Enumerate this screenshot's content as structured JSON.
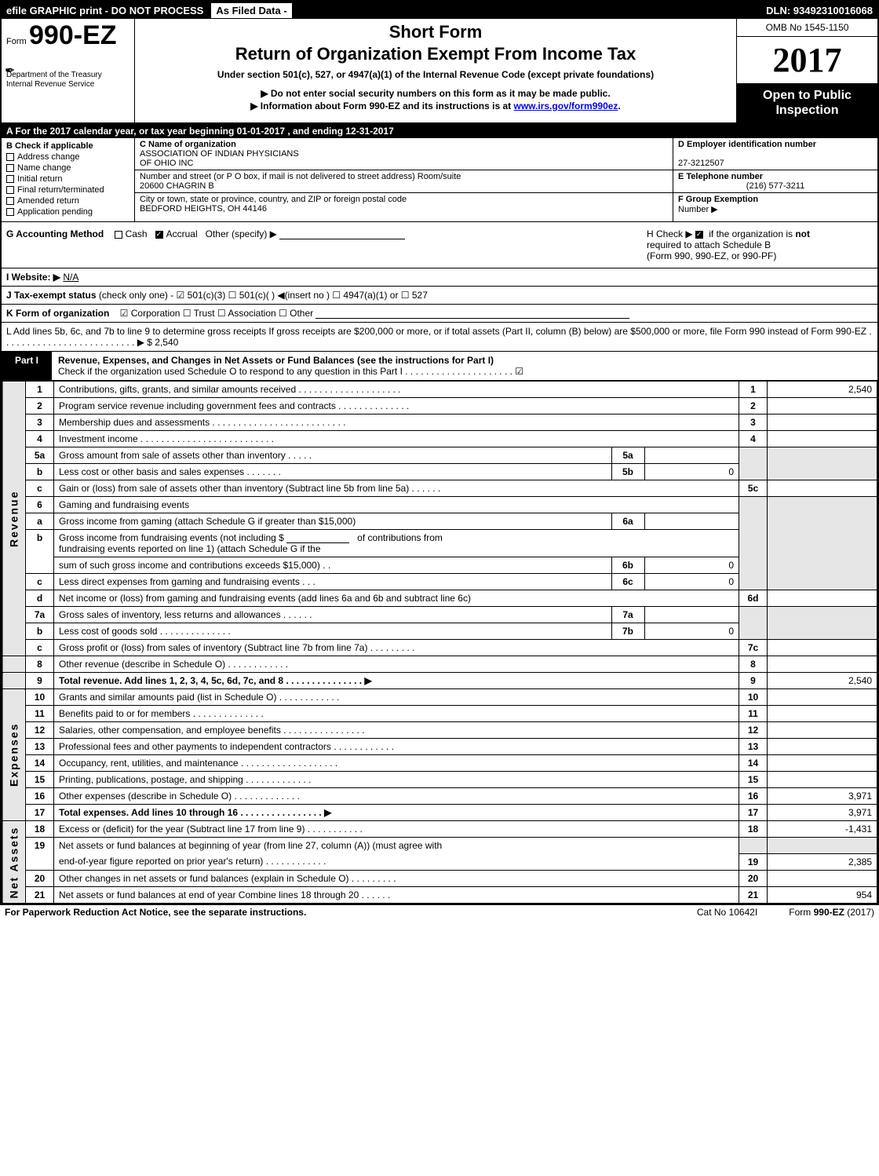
{
  "topbar": {
    "left": "efile GRAPHIC print - DO NOT PROCESS",
    "asfiled": "As Filed Data -",
    "dln": "DLN: 93492310016068"
  },
  "header": {
    "form_prefix": "Form",
    "form_number": "990-EZ",
    "dept1": "Department of the Treasury",
    "dept2": "Internal Revenue Service",
    "short": "Short Form",
    "title": "Return of Organization Exempt From Income Tax",
    "subtitle": "Under section 501(c), 527, or 4947(a)(1) of the Internal Revenue Code (except private foundations)",
    "note1": "▶ Do not enter social security numbers on this form as it may be made public.",
    "note2_pre": "▶ Information about Form 990-EZ and its instructions is at ",
    "note2_link": "www.irs.gov/form990ez",
    "note2_post": ".",
    "omb": "OMB No 1545-1150",
    "year": "2017",
    "open1": "Open to Public",
    "open2": "Inspection"
  },
  "band_a": "A  For the 2017 calendar year, or tax year beginning 01-01-2017            , and ending 12-31-2017",
  "sec_b": {
    "hdr": "B  Check if applicable",
    "items": [
      "Address change",
      "Name change",
      "Initial return",
      "Final return/terminated",
      "Amended return",
      "Application pending"
    ]
  },
  "sec_c": {
    "c_lbl": "C Name of organization",
    "c_name1": "ASSOCIATION OF INDIAN PHYSICIANS",
    "c_name2": "OF OHIO INC",
    "addr_lbl": "Number and street (or P  O  box, if mail is not delivered to street address)  Room/suite",
    "addr": "20600 CHAGRIN B",
    "city_lbl": "City or town, state or province, country, and ZIP or foreign postal code",
    "city": "BEDFORD HEIGHTS, OH  44146"
  },
  "sec_def": {
    "d_lbl": "D Employer identification number",
    "d_val": "27-3212507",
    "e_lbl": "E Telephone number",
    "e_val": "(216) 577-3211",
    "f_lbl": "F Group Exemption",
    "f_lbl2": "Number    ▶"
  },
  "sec_g": {
    "lbl": "G Accounting Method",
    "cash": "Cash",
    "accrual": "Accrual",
    "other": "Other (specify) ▶"
  },
  "sec_h": {
    "line1_pre": "H   Check ▶   ",
    "line1_post": " if the organization is ",
    "not": "not",
    "line2": "required to attach Schedule B",
    "line3": "(Form 990, 990-EZ, or 990-PF)"
  },
  "sec_i": {
    "lbl": "I Website: ▶",
    "val": "N/A"
  },
  "sec_j": {
    "lbl": "J Tax-exempt status",
    "rest": "(check only one) - ☑ 501(c)(3)  ☐ 501(c)(  ) ◀(insert no ) ☐ 4947(a)(1) or  ☐ 527"
  },
  "sec_k": {
    "lbl": "K Form of organization",
    "opts": "☑ Corporation   ☐ Trust   ☐ Association   ☐ Other"
  },
  "sec_l": {
    "text": "L Add lines 5b, 6c, and 7b to line 9 to determine gross receipts  If gross receipts are $200,000 or more, or if total assets (Part II, column (B) below) are $500,000 or more, file Form 990 instead of Form 990-EZ  .  .  .  .  .  .  .  .  .  .  .  .  .  .  .  .  .  .  .  .  .  .  .  .  .  .  ▶ $ 2,540"
  },
  "part1": {
    "lbl": "Part I",
    "title": "Revenue, Expenses, and Changes in Net Assets or Fund Balances (see the instructions for Part I)",
    "check": "Check if the organization used Schedule O to respond to any question in this Part I .  .  .  .  .  .  .  .  .  .  .  .  .  .  .  .  .  .  .  .  .  ☑"
  },
  "side": {
    "rev": "Revenue",
    "exp": "Expenses",
    "net": "Net Assets"
  },
  "lines": {
    "l1": {
      "n": "1",
      "t": "Contributions, gifts, grants, and similar amounts received .  .  .  .  .  .  .  .  .  .  .  .  .  .  .  .  .  .  .  .",
      "box": "1",
      "v": "2,540"
    },
    "l2": {
      "n": "2",
      "t": "Program service revenue including government fees and contracts .  .  .  .  .  .  .  .  .  .  .  .  .  .",
      "box": "2",
      "v": ""
    },
    "l3": {
      "n": "3",
      "t": "Membership dues and assessments .  .  .  .  .  .  .  .  .  .  .  .  .  .  .  .  .  .  .  .  .  .  .  .  .  .",
      "box": "3",
      "v": ""
    },
    "l4": {
      "n": "4",
      "t": "Investment income .  .  .  .  .  .  .  .  .  .  .  .  .  .  .  .  .  .  .  .  .  .  .  .  .  .",
      "box": "4",
      "v": ""
    },
    "l5a": {
      "n": "5a",
      "t": "Gross amount from sale of assets other than inventory .  .  .  .  .",
      "ibox": "5a",
      "iv": ""
    },
    "l5b": {
      "n": "b",
      "t": "Less  cost or other basis and sales expenses .  .  .  .  .  .  .",
      "ibox": "5b",
      "iv": "0"
    },
    "l5c": {
      "n": "c",
      "t": "Gain or (loss) from sale of assets other than inventory (Subtract line 5b from line 5a) .  .  .  .  .  .",
      "box": "5c",
      "v": ""
    },
    "l6": {
      "n": "6",
      "t": "Gaming and fundraising events"
    },
    "l6a": {
      "n": "a",
      "t": "Gross income from gaming (attach Schedule G if greater than $15,000)",
      "ibox": "6a",
      "iv": ""
    },
    "l6b": {
      "n": "b",
      "t1": "Gross income from fundraising events (not including $",
      "t2": "of contributions from",
      "t3": "fundraising events reported on line 1) (attach Schedule G if the",
      "t4": "sum of such gross income and contributions exceeds $15,000)   .  .",
      "ibox": "6b",
      "iv": "0"
    },
    "l6c": {
      "n": "c",
      "t": "Less  direct expenses from gaming and fundraising events      .  .  .",
      "ibox": "6c",
      "iv": "0"
    },
    "l6d": {
      "n": "d",
      "t": "Net income or (loss) from gaming and fundraising events (add lines 6a and 6b and subtract line 6c)",
      "box": "6d",
      "v": ""
    },
    "l7a": {
      "n": "7a",
      "t": "Gross sales of inventory, less returns and allowances .  .  .  .  .  .",
      "ibox": "7a",
      "iv": ""
    },
    "l7b": {
      "n": "b",
      "t": "Less  cost of goods sold          .  .  .  .  .  .  .  .  .  .  .  .  .  .",
      "ibox": "7b",
      "iv": "0"
    },
    "l7c": {
      "n": "c",
      "t": "Gross profit or (loss) from sales of inventory (Subtract line 7b from line 7a) .  .  .  .  .  .  .  .  .",
      "box": "7c",
      "v": ""
    },
    "l8": {
      "n": "8",
      "t": "Other revenue (describe in Schedule O)                        .  .  .  .  .  .  .  .  .  .  .  .",
      "box": "8",
      "v": ""
    },
    "l9": {
      "n": "9",
      "t": "Total revenue. Add lines 1, 2, 3, 4, 5c, 6d, 7c, and 8 .  .  .  .  .  .  .  .  .  .  .  .  .  .  .   ▶",
      "box": "9",
      "v": "2,540",
      "bold": true
    },
    "l10": {
      "n": "10",
      "t": "Grants and similar amounts paid (list in Schedule O)          .  .  .  .  .  .  .  .  .  .  .  .",
      "box": "10",
      "v": ""
    },
    "l11": {
      "n": "11",
      "t": "Benefits paid to or for members                    .  .  .  .  .  .  .  .  .  .  .  .  .  .",
      "box": "11",
      "v": ""
    },
    "l12": {
      "n": "12",
      "t": "Salaries, other compensation, and employee benefits .  .  .  .  .  .  .  .  .  .  .  .  .  .  .  .",
      "box": "12",
      "v": ""
    },
    "l13": {
      "n": "13",
      "t": "Professional fees and other payments to independent contractors  .  .  .  .  .  .  .  .  .  .  .  .",
      "box": "13",
      "v": ""
    },
    "l14": {
      "n": "14",
      "t": "Occupancy, rent, utilities, and maintenance .  .  .  .  .  .  .  .  .  .  .  .  .  .  .  .  .  .  .",
      "box": "14",
      "v": ""
    },
    "l15": {
      "n": "15",
      "t": "Printing, publications, postage, and shipping            .  .  .  .  .  .  .  .  .  .  .  .  .",
      "box": "15",
      "v": ""
    },
    "l16": {
      "n": "16",
      "t": "Other expenses (describe in Schedule O)                .  .  .  .  .  .  .  .  .  .  .  .  .",
      "box": "16",
      "v": "3,971"
    },
    "l17": {
      "n": "17",
      "t": "Total expenses. Add lines 10 through 16        .  .  .  .  .  .  .  .  .  .  .  .  .  .  .  .   ▶",
      "box": "17",
      "v": "3,971",
      "bold": true
    },
    "l18": {
      "n": "18",
      "t": "Excess or (deficit) for the year (Subtract line 17 from line 9)      .  .  .  .  .  .  .  .  .  .  .",
      "box": "18",
      "v": "-1,431"
    },
    "l19": {
      "n": "19",
      "t1": "Net assets or fund balances at beginning of year (from line 27, column (A)) (must agree with",
      "t2": "end-of-year figure reported on prior year's return)            .  .  .  .  .  .  .  .  .  .  .  .",
      "box": "19",
      "v": "2,385"
    },
    "l20": {
      "n": "20",
      "t": "Other changes in net assets or fund balances (explain in Schedule O)    .  .  .  .  .  .  .  .  .",
      "box": "20",
      "v": ""
    },
    "l21": {
      "n": "21",
      "t": "Net assets or fund balances at end of year  Combine lines 18 through 20        .  .  .  .  .  .",
      "box": "21",
      "v": "954"
    }
  },
  "footer": {
    "left": "For Paperwork Reduction Act Notice, see the separate instructions.",
    "mid": "Cat  No  10642I",
    "right": "Form 990-EZ (2017)"
  }
}
